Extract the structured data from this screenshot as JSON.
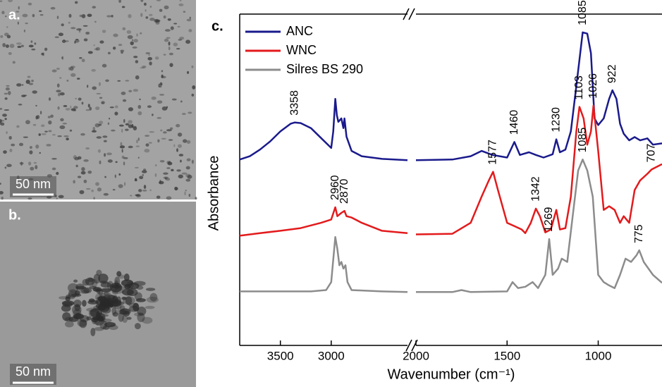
{
  "panels": [
    {
      "label": "a.",
      "scale_bar": "50 nm"
    },
    {
      "label": "b.",
      "scale_bar": "50 nm"
    }
  ],
  "chart_data": {
    "type": "line",
    "label": "c.",
    "x_label": "Wavenumber (cm⁻¹)",
    "y_label": "Absorbance",
    "ylim": [
      0,
      100
    ],
    "legend": "upper left",
    "x_segments": [
      {
        "xlim": [
          3900,
          2250
        ],
        "xticks": [
          3500,
          3000
        ]
      },
      {
        "xlim": [
          2000,
          650
        ],
        "xticks": [
          2000,
          1500,
          1000
        ]
      }
    ],
    "series": [
      {
        "name": "ANC",
        "color": "#1a1a8c",
        "x": [
          3900,
          3800,
          3700,
          3600,
          3500,
          3400,
          3358,
          3300,
          3200,
          3100,
          3000,
          2980,
          2960,
          2945,
          2930,
          2900,
          2880,
          2870,
          2850,
          2800,
          2700,
          2500,
          2250,
          null,
          2000,
          1800,
          1700,
          1640,
          1580,
          1500,
          1460,
          1430,
          1380,
          1342,
          1300,
          1250,
          1230,
          1210,
          1180,
          1150,
          1120,
          1103,
          1085,
          1060,
          1040,
          1020,
          1000,
          970,
          940,
          922,
          900,
          880,
          860,
          830,
          800,
          770,
          730,
          700,
          650
        ],
        "values": [
          56.1,
          57.1,
          59.1,
          61.6,
          64.6,
          66.9,
          67.3,
          67.1,
          65.6,
          62.6,
          59.6,
          64.6,
          74.4,
          69.5,
          67.5,
          68.5,
          65.6,
          68.5,
          63.0,
          58.7,
          57.1,
          56.3,
          55.9,
          null,
          55.9,
          56.1,
          57.1,
          58.7,
          57.5,
          56.7,
          61.4,
          57.5,
          58.3,
          57.5,
          56.7,
          57.7,
          62.2,
          58.3,
          59.1,
          64.6,
          78.3,
          86.2,
          94.5,
          94.1,
          88.2,
          68.5,
          66.5,
          68.5,
          74.4,
          77.0,
          74.4,
          66.9,
          63.9,
          61.9,
          62.9,
          61.9,
          62.5,
          60.6,
          61.0
        ]
      },
      {
        "name": "WNC",
        "color": "#e31a1c",
        "x": [
          3900,
          3700,
          3500,
          3300,
          3100,
          3000,
          2960,
          2940,
          2900,
          2870,
          2850,
          2800,
          2700,
          2500,
          2250,
          null,
          2000,
          1800,
          1700,
          1640,
          1600,
          1577,
          1550,
          1500,
          1460,
          1420,
          1400,
          1370,
          1342,
          1320,
          1290,
          1260,
          1230,
          1210,
          1180,
          1150,
          1120,
          1103,
          1080,
          1060,
          1040,
          1026,
          1000,
          970,
          940,
          910,
          880,
          860,
          830,
          800,
          770,
          730,
          707,
          650
        ],
        "values": [
          33.1,
          33.9,
          34.6,
          35.4,
          37.0,
          38.0,
          41.7,
          39.0,
          40.0,
          40.6,
          39.0,
          38.6,
          37.0,
          34.6,
          33.9,
          null,
          33.5,
          33.7,
          37.0,
          44.9,
          49.8,
          52.4,
          46.9,
          37.0,
          36.0,
          35.0,
          33.9,
          37.0,
          41.3,
          39.0,
          34.1,
          35.0,
          40.9,
          35.0,
          35.4,
          44.9,
          64.6,
          72.0,
          68.5,
          60.6,
          64.6,
          72.4,
          58.7,
          40.9,
          42.0,
          40.9,
          37.0,
          39.0,
          37.0,
          46.9,
          49.8,
          51.8,
          53.1,
          54.7
        ]
      },
      {
        "name": "Silres BS 290",
        "color": "#8c8c8c",
        "x": [
          3900,
          3200,
          3050,
          3000,
          2960,
          2940,
          2920,
          2900,
          2880,
          2860,
          2840,
          2800,
          2500,
          2250,
          null,
          2000,
          1800,
          1750,
          1700,
          1500,
          1470,
          1440,
          1400,
          1360,
          1330,
          1290,
          1269,
          1250,
          1220,
          1200,
          1170,
          1140,
          1110,
          1085,
          1060,
          1030,
          1000,
          970,
          940,
          910,
          880,
          850,
          820,
          790,
          775,
          750,
          700,
          650
        ],
        "values": [
          16.3,
          16.3,
          16.7,
          19.1,
          32.7,
          29.1,
          24.2,
          25.2,
          23.2,
          24.2,
          19.1,
          16.7,
          16.3,
          16.1,
          null,
          16.1,
          16.1,
          16.7,
          16.1,
          16.3,
          19.1,
          17.3,
          17.7,
          19.1,
          17.3,
          21.3,
          32.1,
          21.3,
          23.2,
          26.2,
          25.2,
          39.0,
          52.8,
          56.1,
          52.8,
          44.9,
          21.3,
          19.1,
          18.1,
          17.3,
          21.3,
          26.2,
          25.2,
          27.2,
          28.7,
          25.2,
          21.3,
          18.9
        ]
      }
    ],
    "annotations": [
      {
        "value": 3358,
        "series": 0
      },
      {
        "value": 1460,
        "series": 0
      },
      {
        "value": 1230,
        "series": 0
      },
      {
        "value": 1085,
        "series": 0
      },
      {
        "value": 922,
        "series": 0
      },
      {
        "value": 2960,
        "series": 1
      },
      {
        "value": 2870,
        "series": 1
      },
      {
        "value": 1577,
        "series": 1
      },
      {
        "value": 1342,
        "series": 1
      },
      {
        "value": 1103,
        "series": 1
      },
      {
        "value": 1026,
        "series": 1
      },
      {
        "value": 707,
        "series": 1
      },
      {
        "value": 1269,
        "series": 2
      },
      {
        "value": 1085,
        "series": 2
      },
      {
        "value": 775,
        "series": 2
      }
    ]
  }
}
